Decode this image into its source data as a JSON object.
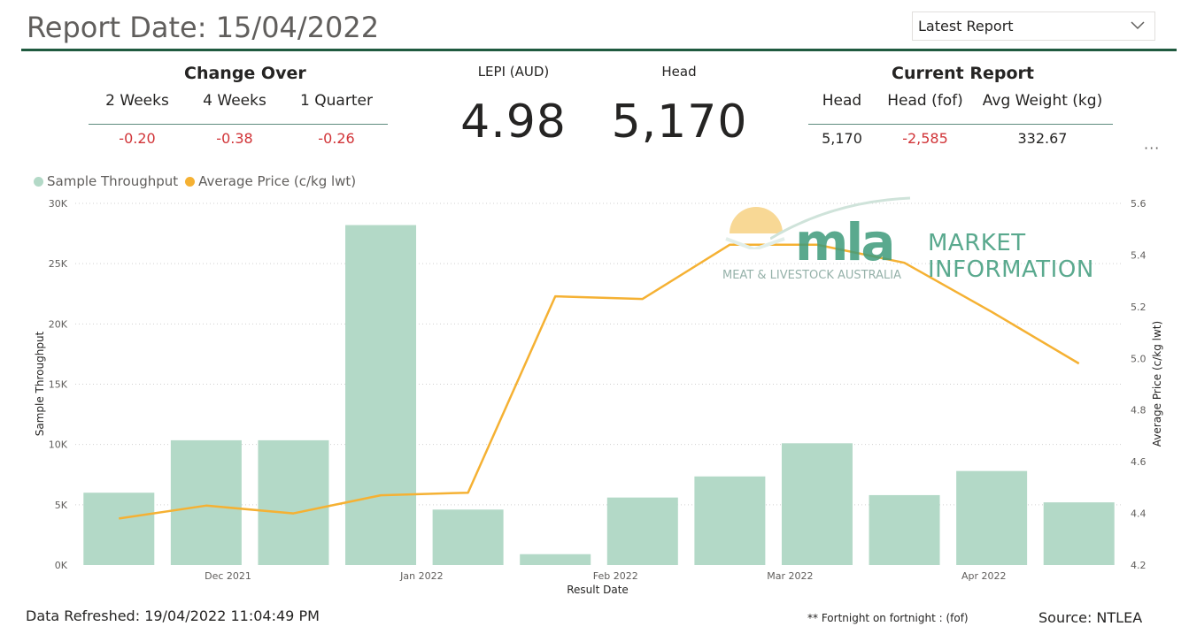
{
  "header": {
    "report_date": "Report Date: 15/04/2022",
    "dropdown_value": "Latest Report"
  },
  "change_over": {
    "title": "Change Over",
    "columns": [
      "2 Weeks",
      "4 Weeks",
      "1 Quarter"
    ],
    "values": [
      "-0.20",
      "-0.38",
      "-0.26"
    ]
  },
  "kpis": {
    "lepi_label": "LEPI (AUD)",
    "lepi_value": "4.98",
    "head_label": "Head",
    "head_value": "5,170"
  },
  "current_report": {
    "title": "Current Report",
    "columns": [
      "Head",
      "Head (fof)",
      "Avg Weight (kg)"
    ],
    "values": [
      "5,170",
      "-2,585",
      "332.67"
    ]
  },
  "logo": {
    "mla": "mla",
    "line1": "MARKET",
    "line2": "INFORMATION",
    "sub": "MEAT & LIVESTOCK AUSTRALIA"
  },
  "footer": {
    "refreshed": "Data Refreshed: 19/04/2022 11:04:49 PM",
    "note": "** Fortnight on fortnight : (fof)",
    "source": "Source: NTLEA"
  },
  "colors": {
    "bar": "#b3d9c7",
    "line": "#f5b133",
    "negative": "#d13438",
    "rule": "#1f5a3f"
  },
  "chart_data": {
    "type": "bar",
    "xlabel": "Result Date",
    "ylabel": "Sample Throughput",
    "y2label": "Average Price (c/kg lwt)",
    "ylim": [
      0,
      30000
    ],
    "y2lim": [
      4.2,
      5.6
    ],
    "y_ticks": [
      "0K",
      "5K",
      "10K",
      "15K",
      "20K",
      "25K",
      "30K"
    ],
    "y2_ticks": [
      "4.2",
      "4.4",
      "4.6",
      "4.8",
      "5.0",
      "5.2",
      "5.4",
      "5.6"
    ],
    "x_ticks": [
      {
        "label": "Dec 2021",
        "pos": 1.75
      },
      {
        "label": "Jan 2022",
        "pos": 3.97
      },
      {
        "label": "Feb 2022",
        "pos": 6.19
      },
      {
        "label": "Mar 2022",
        "pos": 8.19
      },
      {
        "label": "Apr 2022",
        "pos": 10.41
      }
    ],
    "grid": true,
    "legend_position": "top-left",
    "series": [
      {
        "name": "Sample Throughput",
        "type": "bar",
        "axis": "left",
        "values": [
          6000,
          10350,
          10350,
          28200,
          4600,
          900,
          5600,
          7350,
          10100,
          5800,
          7800,
          5200
        ]
      },
      {
        "name": "Average Price (c/kg lwt)",
        "type": "line",
        "axis": "right",
        "values": [
          4.38,
          4.43,
          4.4,
          4.47,
          4.48,
          5.24,
          5.23,
          5.44,
          5.44,
          5.37,
          5.18,
          4.98
        ]
      }
    ]
  }
}
